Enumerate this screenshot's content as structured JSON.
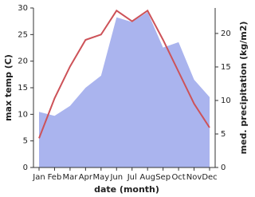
{
  "chart_data": {
    "type": "line_area",
    "x_label": "date (month)",
    "y_label": "max temp (C)",
    "y2_label": "med. precipitation (kg/m2)",
    "categories": [
      "Jan",
      "Feb",
      "Mar",
      "Apr",
      "May",
      "Jun",
      "Jul",
      "Aug",
      "Sep",
      "Oct",
      "Nov",
      "Dec"
    ],
    "series": [
      {
        "name": "max temp",
        "color": "#cd5258",
        "values": [
          5.5,
          13,
          19,
          24,
          25,
          29.5,
          27.5,
          29.5,
          24,
          18,
          12,
          7.5
        ]
      },
      {
        "name": "med. precipitation",
        "color": "#aab4ee",
        "axis": "y2",
        "values": [
          8.3,
          7.7,
          9.2,
          11.9,
          13.7,
          22.4,
          21.7,
          23.2,
          17.9,
          18.7,
          13.1,
          10.5
        ]
      }
    ],
    "ylim": [
      0,
      30
    ],
    "yticks": [
      0,
      5,
      10,
      15,
      20,
      25,
      30
    ],
    "y2lim": [
      0,
      23.8
    ],
    "y2ticks": [
      0,
      5,
      10,
      15,
      20
    ]
  }
}
